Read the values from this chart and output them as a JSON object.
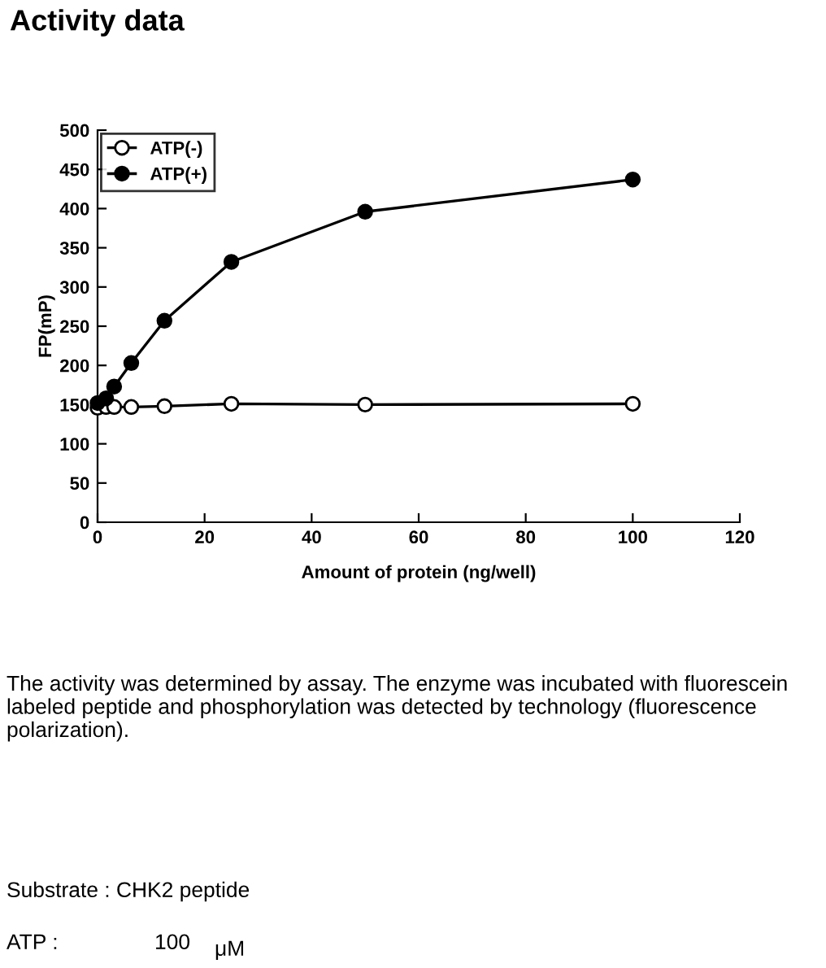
{
  "chart_data": {
    "type": "line",
    "title": "Activity data",
    "xlabel": "Amount of protein (ng/well)",
    "ylabel": "FP(mP)",
    "xlim": [
      0,
      120
    ],
    "xticks": [
      0,
      20,
      40,
      60,
      80,
      100,
      120
    ],
    "ylim": [
      0,
      500
    ],
    "yticks": [
      0,
      50,
      100,
      150,
      200,
      250,
      300,
      350,
      400,
      450,
      500
    ],
    "grid": false,
    "legend": "top left",
    "marker": "circle",
    "line_style": "solid",
    "series": [
      {
        "name": "ATP(-)",
        "color": "#000000",
        "x": [
          0,
          1.6,
          3.1,
          6.3,
          12.5,
          25,
          50,
          100
        ],
        "values": [
          146,
          147,
          147,
          147,
          148,
          151,
          150,
          151
        ]
      },
      {
        "name": "ATP(+)",
        "color": "#000000",
        "x": [
          0,
          1.6,
          3.1,
          6.3,
          12.5,
          25,
          50,
          100
        ],
        "values": [
          152,
          158,
          173,
          203,
          257,
          332,
          396,
          437
        ]
      }
    ],
    "annotations": [
      "The activity was determined by assay. The enzyme was incubated with fluorescein labeled peptide and phosphorylation was detected by technology (fluorescence polarization).",
      "Substrate : CHK2 peptide",
      "ATP :",
      "100",
      "μM"
    ]
  }
}
